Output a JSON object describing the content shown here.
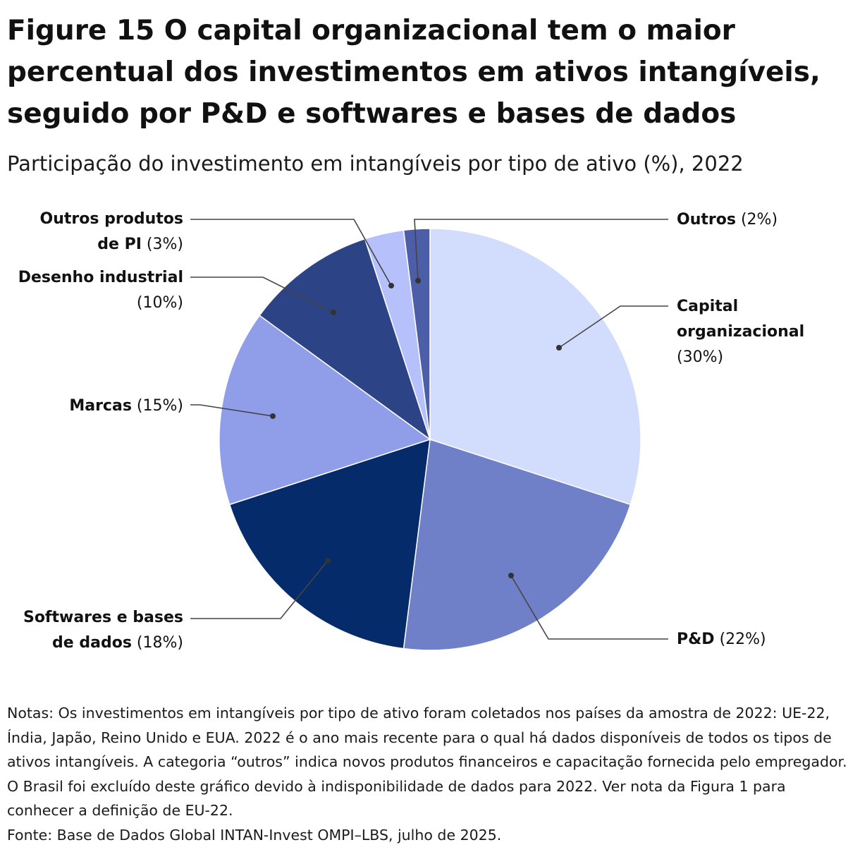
{
  "title": "Figure 15 O capital organizacional tem o maior percentual dos investimentos em ativos intangíveis, seguido por P&D e softwares e bases de dados",
  "subtitle": "Participação do investimento em intangíveis por tipo de ativo (%), 2022",
  "chart_data": {
    "type": "pie",
    "start_angle_deg": 0,
    "direction": "clockwise",
    "slices": [
      {
        "label": "Capital organizacional",
        "value": 30,
        "pct_text": "(30%)",
        "color": "#d2dcfc"
      },
      {
        "label": "P&D",
        "value": 22,
        "pct_text": "(22%)",
        "color": "#6f7fc8"
      },
      {
        "label": "Softwares e bases de dados",
        "value": 18,
        "pct_text": "(18%)",
        "color": "#052b6b"
      },
      {
        "label": "Marcas",
        "value": 15,
        "pct_text": "(15%)",
        "color": "#909eea"
      },
      {
        "label": "Desenho industrial",
        "value": 10,
        "pct_text": "(10%)",
        "color": "#2c4386"
      },
      {
        "label": "Outros produtos de PI",
        "value": 3,
        "pct_text": "(3%)",
        "color": "#b6c1fb"
      },
      {
        "label": "Outros",
        "value": 2,
        "pct_text": "(2%)",
        "color": "#4d5ea8"
      }
    ]
  },
  "labels": {
    "capital": {
      "name_line1": "Capital",
      "name_line2": "organizacional",
      "pct": "(30%)"
    },
    "pd": {
      "name": "P&D",
      "pct": "(22%)"
    },
    "software": {
      "name_line1": "Softwares e bases",
      "name_line2": "de dados",
      "pct": "(18%)"
    },
    "marcas": {
      "name": "Marcas",
      "pct": "(15%)"
    },
    "desenho": {
      "name": "Desenho industrial",
      "pct": "(10%)"
    },
    "outros_pi": {
      "name_line1": "Outros produtos",
      "name_line2": "de PI",
      "pct": "(3%)"
    },
    "outros": {
      "name": "Outros",
      "pct": "(2%)"
    }
  },
  "notes": {
    "line1": "Notas: Os investimentos em intangíveis por tipo de ativo foram coletados nos países da amostra de 2022: UE-22, Índia, Japão, Reino Unido e EUA. 2022 é o ano mais recente para o qual há dados disponíveis de todos os tipos de ativos intangíveis. A categoria “outros” indica novos produtos financeiros e capacitação fornecida pelo empregador. O Brasil foi excluído deste gráfico devido à indisponibilidade de dados para 2022. Ver nota da Figura 1 para conhecer a definição de EU-22.",
    "source": "Fonte: Base de Dados Global INTAN-Invest OMPI–LBS, julho de 2025."
  }
}
